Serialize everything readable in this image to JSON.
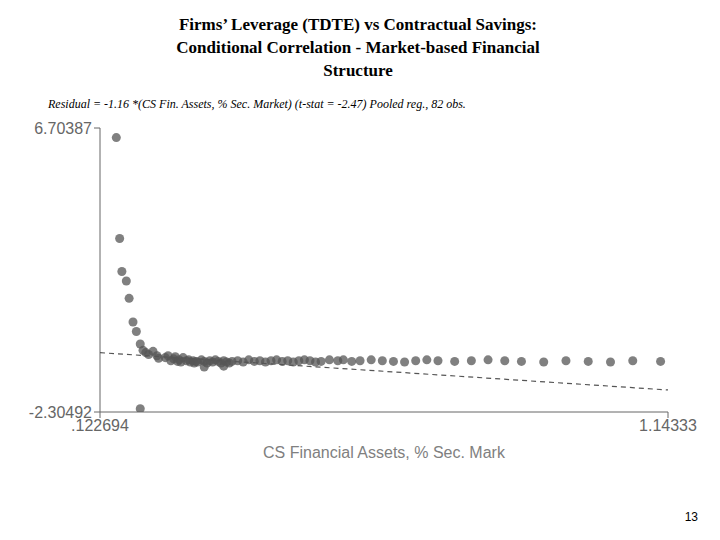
{
  "chart_data": {
    "type": "scatter",
    "title": "Firms’ Leverage (TDTE) vs Contractual Savings:\nConditional Correlation - Market-based Financial\nStructure",
    "subtitle": "Residual = -1.16 *(CS Fin. Assets, % Sec. Market) (t-stat = -2.47)  Pooled reg., 82 obs.",
    "x_label": "CS Financial Assets, % Sec. Mark",
    "annotations": [
      "13"
    ],
    "xlim": [
      0.122694,
      1.14333
    ],
    "ylim": [
      -2.30492,
      6.70387
    ],
    "xticks": [
      {
        "value": 0.122694,
        "label": ".122694"
      },
      1.14333
    ],
    "yticks": [
      -2.30492,
      6.70387
    ],
    "grid": false,
    "series": [
      {
        "type": "scatter",
        "color": "#555555",
        "marker": "circle",
        "x": [
          0.152,
          0.158,
          0.162,
          0.17,
          0.175,
          0.182,
          0.188,
          0.195,
          0.2,
          0.205,
          0.21,
          0.218,
          0.225,
          0.228,
          0.24,
          0.245,
          0.25,
          0.255,
          0.258,
          0.262,
          0.265,
          0.268,
          0.272,
          0.278,
          0.282,
          0.285,
          0.29,
          0.292,
          0.295,
          0.298,
          0.305,
          0.31,
          0.315,
          0.32,
          0.325,
          0.33,
          0.335,
          0.34,
          0.345,
          0.35,
          0.355,
          0.36,
          0.37,
          0.38,
          0.39,
          0.4,
          0.41,
          0.42,
          0.43,
          0.44,
          0.45,
          0.46,
          0.47,
          0.48,
          0.49,
          0.5,
          0.51,
          0.52,
          0.535,
          0.55,
          0.56,
          0.575,
          0.59,
          0.61,
          0.63,
          0.65,
          0.67,
          0.69,
          0.71,
          0.73,
          0.76,
          0.79,
          0.82,
          0.85,
          0.88,
          0.92,
          0.96,
          1.0,
          1.04,
          1.08,
          1.13,
          0.195,
          0.345,
          0.31
        ],
        "values": [
          6.4,
          3.2,
          2.15,
          1.85,
          1.3,
          0.55,
          0.25,
          -0.15,
          -0.35,
          -0.42,
          -0.48,
          -0.38,
          -0.52,
          -0.6,
          -0.58,
          -0.52,
          -0.68,
          -0.62,
          -0.55,
          -0.7,
          -0.65,
          -0.72,
          -0.58,
          -0.68,
          -0.65,
          -0.72,
          -0.68,
          -0.75,
          -0.7,
          -0.72,
          -0.65,
          -0.7,
          -0.75,
          -0.68,
          -0.72,
          -0.65,
          -0.7,
          -0.75,
          -0.68,
          -0.72,
          -0.75,
          -0.7,
          -0.68,
          -0.72,
          -0.65,
          -0.7,
          -0.68,
          -0.72,
          -0.68,
          -0.65,
          -0.7,
          -0.68,
          -0.72,
          -0.68,
          -0.65,
          -0.68,
          -0.72,
          -0.7,
          -0.65,
          -0.68,
          -0.65,
          -0.7,
          -0.68,
          -0.65,
          -0.68,
          -0.7,
          -0.72,
          -0.68,
          -0.65,
          -0.68,
          -0.7,
          -0.68,
          -0.65,
          -0.68,
          -0.7,
          -0.72,
          -0.68,
          -0.7,
          -0.72,
          -0.68,
          -0.7,
          -2.2,
          -0.85,
          -0.88
        ]
      },
      {
        "type": "line",
        "color": "#555555",
        "line_style": "dashed",
        "x": [
          0.122694,
          1.14333
        ],
        "values": [
          -0.42232504,
          -1.6062628
        ]
      }
    ]
  }
}
